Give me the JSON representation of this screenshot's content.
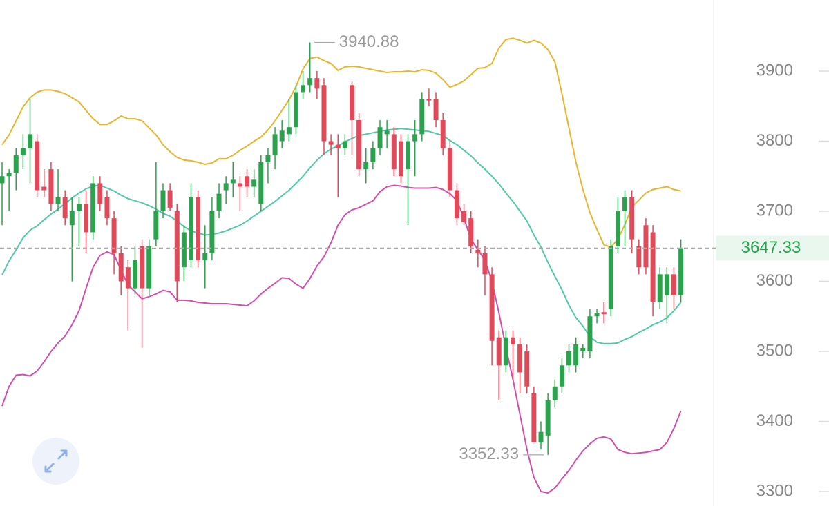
{
  "chart_data": {
    "type": "candlestick",
    "open": [
      3740,
      3750,
      3755,
      3780,
      3790,
      3800,
      3735,
      3760,
      3710,
      3720,
      3680,
      3700,
      3710,
      3670,
      3740,
      3720,
      3690,
      3640,
      3620,
      3590,
      3650,
      3590,
      3660,
      3700,
      3730,
      3700,
      3620,
      3630,
      3720,
      3630,
      3640,
      3700,
      3730,
      3740,
      3740,
      3750,
      3735,
      3710,
      3770,
      3780,
      3800,
      3810,
      3820,
      3870,
      3880,
      3890,
      3880,
      3800,
      3795,
      3790,
      3880,
      3830,
      3760,
      3770,
      3790,
      3810,
      3810,
      3800,
      3760,
      3800,
      3810,
      3860,
      3860,
      3830,
      3790,
      3730,
      3700,
      3690,
      3645,
      3640,
      3610,
      3520,
      3480,
      3520,
      3510,
      3500,
      3440,
      3370,
      3380,
      3430,
      3450,
      3480,
      3480,
      3500,
      3500,
      3550,
      3556,
      3560,
      3650,
      3700,
      3720,
      3650,
      3680,
      3670,
      3570,
      3580,
      3610,
      3580
    ],
    "high": [
      3770,
      3760,
      3790,
      3810,
      3860,
      3810,
      3760,
      3770,
      3760,
      3730,
      3720,
      3720,
      3730,
      3750,
      3750,
      3730,
      3700,
      3650,
      3630,
      3650,
      3660,
      3660,
      3770,
      3740,
      3740,
      3710,
      3680,
      3740,
      3730,
      3680,
      3720,
      3740,
      3750,
      3770,
      3750,
      3760,
      3760,
      3780,
      3790,
      3820,
      3830,
      3860,
      3880,
      3900,
      3940.88,
      3900,
      3890,
      3810,
      3810,
      3810,
      3885,
      3840,
      3790,
      3800,
      3830,
      3830,
      3820,
      3810,
      3810,
      3830,
      3870,
      3875,
      3870,
      3840,
      3800,
      3740,
      3710,
      3700,
      3660,
      3650,
      3620,
      3530,
      3530,
      3530,
      3520,
      3510,
      3450,
      3400,
      3440,
      3460,
      3490,
      3510,
      3520,
      3510,
      3560,
      3560,
      3570,
      3660,
      3720,
      3730,
      3730,
      3660,
      3690,
      3680,
      3620,
      3620,
      3620,
      3660
    ],
    "low": [
      3680,
      3700,
      3730,
      3760,
      3740,
      3720,
      3720,
      3700,
      3700,
      3680,
      3600,
      3650,
      3640,
      3660,
      3700,
      3680,
      3610,
      3580,
      3530,
      3580,
      3505,
      3580,
      3650,
      3690,
      3700,
      3570,
      3600,
      3620,
      3620,
      3590,
      3630,
      3690,
      3710,
      3720,
      3700,
      3720,
      3720,
      3700,
      3740,
      3760,
      3790,
      3800,
      3810,
      3860,
      3870,
      3860,
      3780,
      3780,
      3720,
      3780,
      3780,
      3750,
      3740,
      3760,
      3780,
      3790,
      3750,
      3740,
      3680,
      3750,
      3800,
      3850,
      3820,
      3780,
      3720,
      3680,
      3680,
      3640,
      3620,
      3580,
      3480,
      3430,
      3470,
      3460,
      3440,
      3440,
      3370,
      3360,
      3352.33,
      3420,
      3440,
      3470,
      3470,
      3490,
      3490,
      3540,
      3540,
      3550,
      3640,
      3650,
      3640,
      3610,
      3610,
      3550,
      3560,
      3540,
      3560,
      3570
    ],
    "close": [
      3750,
      3755,
      3780,
      3790,
      3810,
      3730,
      3730,
      3710,
      3720,
      3690,
      3700,
      3710,
      3670,
      3740,
      3710,
      3690,
      3640,
      3600,
      3590,
      3630,
      3590,
      3650,
      3700,
      3730,
      3705,
      3600,
      3670,
      3720,
      3630,
      3640,
      3700,
      3725,
      3740,
      3745,
      3735,
      3735,
      3745,
      3770,
      3780,
      3810,
      3815,
      3820,
      3870,
      3880,
      3890,
      3875,
      3800,
      3795,
      3790,
      3800,
      3830,
      3760,
      3770,
      3790,
      3820,
      3815,
      3760,
      3750,
      3800,
      3810,
      3860,
      3858,
      3830,
      3790,
      3730,
      3690,
      3685,
      3650,
      3640,
      3610,
      3515,
      3480,
      3520,
      3510,
      3470,
      3450,
      3370,
      3385,
      3430,
      3450,
      3480,
      3500,
      3510,
      3505,
      3550,
      3555,
      3553,
      3650,
      3700,
      3720,
      3660,
      3620,
      3620,
      3570,
      3610,
      3610,
      3580,
      3647.33
    ],
    "up_color": "#2ca24f",
    "down_color": "#e04a5a",
    "lines": [
      {
        "color": "#e8b530",
        "values": [
          3795,
          3809,
          3829,
          3849,
          3862,
          3870,
          3873,
          3873,
          3871,
          3868,
          3862,
          3856,
          3844,
          3832,
          3824,
          3824,
          3829,
          3836,
          3832,
          3832,
          3829,
          3819,
          3809,
          3795,
          3785,
          3777,
          3773,
          3772,
          3770,
          3767,
          3769,
          3775,
          3775,
          3780,
          3787,
          3793,
          3800,
          3806,
          3816,
          3829,
          3844,
          3859,
          3878,
          3903,
          3918,
          3920,
          3915,
          3911,
          3901,
          3906,
          3907,
          3906,
          3904,
          3902,
          3900,
          3898,
          3899,
          3899,
          3900,
          3899,
          3902,
          3901,
          3897,
          3888,
          3877,
          3881,
          3886,
          3895,
          3904,
          3905,
          3911,
          3933,
          3945,
          3947,
          3944,
          3940,
          3944,
          3940,
          3931,
          3913,
          3868,
          3819,
          3770,
          3731,
          3698,
          3674,
          3652,
          3649,
          3660,
          3681,
          3706,
          3716,
          3726,
          3731,
          3733,
          3735,
          3731,
          3729
        ]
      },
      {
        "color": "#52c9a8",
        "values": [
          3609,
          3629,
          3645,
          3662,
          3673,
          3679,
          3688,
          3696,
          3703,
          3711,
          3719,
          3726,
          3732,
          3736,
          3737,
          3733,
          3729,
          3723,
          3718,
          3715,
          3712,
          3708,
          3703,
          3697,
          3693,
          3686,
          3678,
          3672,
          3669,
          3666,
          3667,
          3669,
          3672,
          3676,
          3680,
          3686,
          3693,
          3700,
          3707,
          3714,
          3722,
          3730,
          3740,
          3750,
          3762,
          3773,
          3782,
          3789,
          3793,
          3799,
          3804,
          3808,
          3810,
          3812,
          3814,
          3816,
          3817,
          3818,
          3817,
          3816,
          3815,
          3814,
          3811,
          3808,
          3801,
          3795,
          3787,
          3779,
          3769,
          3760,
          3750,
          3739,
          3726,
          3714,
          3700,
          3686,
          3666,
          3649,
          3627,
          3607,
          3588,
          3566,
          3548,
          3536,
          3521,
          3513,
          3511,
          3511,
          3512,
          3517,
          3521,
          3527,
          3532,
          3538,
          3542,
          3548,
          3558,
          3570
        ]
      },
      {
        "color": "#d050b0",
        "values": [
          3422,
          3450,
          3466,
          3467,
          3465,
          3472,
          3485,
          3500,
          3512,
          3522,
          3538,
          3558,
          3590,
          3620,
          3637,
          3642,
          3638,
          3616,
          3595,
          3585,
          3575,
          3578,
          3582,
          3587,
          3585,
          3573,
          3573,
          3572,
          3570,
          3569,
          3568,
          3568,
          3568,
          3567,
          3566,
          3565,
          3572,
          3582,
          3590,
          3597,
          3605,
          3604,
          3596,
          3590,
          3604,
          3622,
          3635,
          3655,
          3680,
          3695,
          3702,
          3705,
          3710,
          3715,
          3728,
          3735,
          3737,
          3736,
          3734,
          3733,
          3733,
          3733,
          3734,
          3731,
          3725,
          3715,
          3690,
          3660,
          3645,
          3630,
          3600,
          3555,
          3505,
          3460,
          3410,
          3360,
          3320,
          3300,
          3298,
          3305,
          3318,
          3330,
          3345,
          3358,
          3368,
          3376,
          3378,
          3375,
          3360,
          3356,
          3354,
          3355,
          3356,
          3358,
          3360,
          3370,
          3390,
          3415
        ]
      }
    ],
    "ylim": [
      3279.3,
      4001.5
    ],
    "yticks": [
      3300,
      3400,
      3500,
      3600,
      3700,
      3800,
      3900
    ],
    "last_price_color": "#2ca24f",
    "axis_color": "#888888"
  }
}
